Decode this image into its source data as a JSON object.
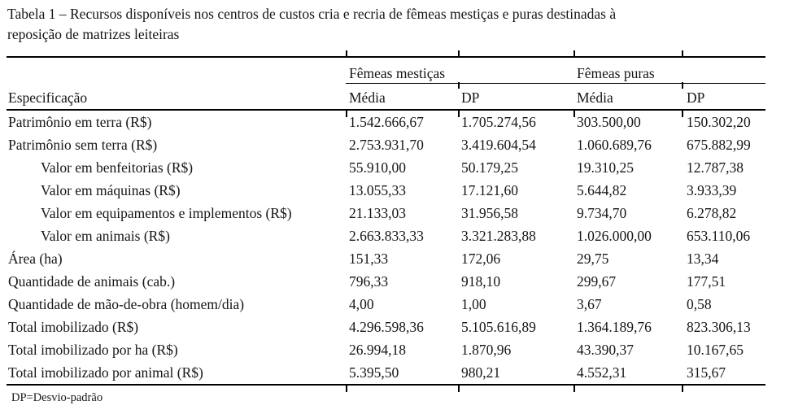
{
  "caption": {
    "line1": "Tabela 1 – Recursos disponíveis nos centros de custos cria e recria de fêmeas mestiças e puras destinadas à",
    "line2": "reposição de matrizes leiteiras"
  },
  "table": {
    "spec_header": "Especificação",
    "col_groups": [
      {
        "label": "Fêmeas mestiças"
      },
      {
        "label": "Fêmeas puras"
      }
    ],
    "sub_headers": [
      "Média",
      "DP",
      "Média",
      "DP"
    ],
    "rows": [
      {
        "label": "Patrimônio em terra (R$)",
        "indent": false,
        "values": [
          "1.542.666,67",
          "1.705.274,56",
          "303.500,00",
          "150.302,20"
        ]
      },
      {
        "label": "Patrimônio sem terra (R$)",
        "indent": false,
        "values": [
          "2.753.931,70",
          "3.419.604,54",
          "1.060.689,76",
          "675.882,99"
        ]
      },
      {
        "label": "Valor em benfeitorias (R$)",
        "indent": true,
        "values": [
          "55.910,00",
          "50.179,25",
          "19.310,25",
          "12.787,38"
        ]
      },
      {
        "label": "Valor em máquinas (R$)",
        "indent": true,
        "values": [
          "13.055,33",
          "17.121,60",
          "5.644,82",
          "3.933,39"
        ]
      },
      {
        "label": "Valor em equipamentos e implementos (R$)",
        "indent": true,
        "values": [
          "21.133,03",
          "31.956,58",
          "9.734,70",
          "6.278,82"
        ]
      },
      {
        "label": "Valor em animais (R$)",
        "indent": true,
        "values": [
          "2.663.833,33",
          "3.321.283,88",
          "1.026.000,00",
          "653.110,06"
        ]
      },
      {
        "label": "Área (ha)",
        "indent": false,
        "values": [
          "151,33",
          "172,06",
          "29,75",
          "13,34"
        ]
      },
      {
        "label": "Quantidade de animais (cab.)",
        "indent": false,
        "values": [
          "796,33",
          "918,10",
          "299,67",
          "177,51"
        ]
      },
      {
        "label": "Quantidade de mão-de-obra (homem/dia)",
        "indent": false,
        "values": [
          "4,00",
          "1,00",
          "3,67",
          "0,58"
        ]
      },
      {
        "label": "Total imobilizado (R$)",
        "indent": false,
        "values": [
          "4.296.598,36",
          "5.105.616,89",
          "1.364.189,76",
          "823.306,13"
        ]
      },
      {
        "label": "Total imobilizado por ha (R$)",
        "indent": false,
        "values": [
          "26.994,18",
          "1.870,96",
          "43.390,37",
          "10.167,65"
        ]
      },
      {
        "label": "Total imobilizado por animal (R$)",
        "indent": false,
        "values": [
          "5.395,50",
          "980,21",
          "4.552,31",
          "315,67"
        ]
      }
    ],
    "footnote": "DP=Desvio-padrão"
  }
}
